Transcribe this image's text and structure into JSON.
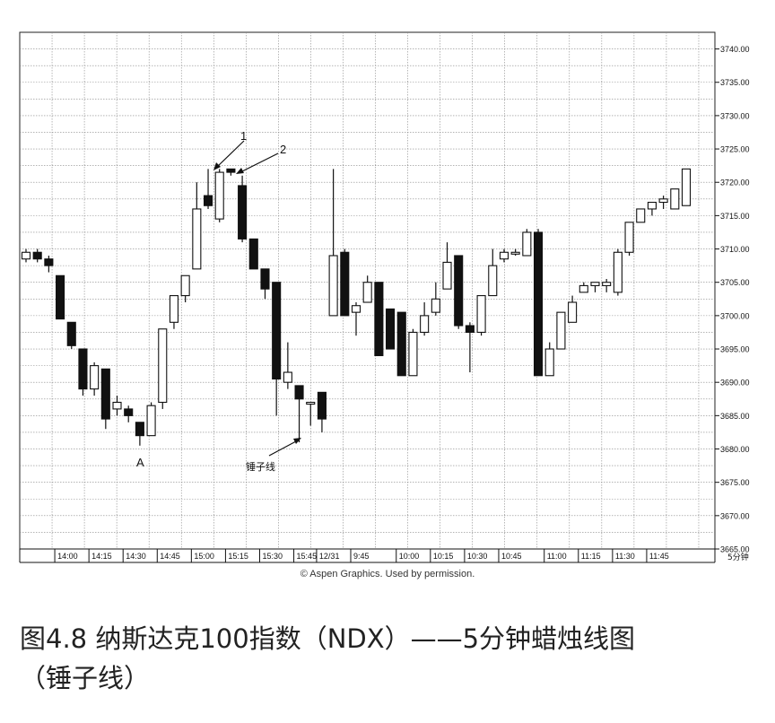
{
  "chart_data": {
    "type": "candlestick",
    "ylim": [
      3665,
      3742.5
    ],
    "grid": true,
    "y_ticks": [
      "3665.00",
      "3670.00",
      "3675.00",
      "3680.00",
      "3685.00",
      "3690.00",
      "3695.00",
      "3700.00",
      "3705.00",
      "3710.00",
      "3715.00",
      "3720.00",
      "3725.00",
      "3730.00",
      "3735.00",
      "3740.00"
    ],
    "x_labels": [
      "14:00",
      "14:15",
      "14:30",
      "14:45",
      "15:00",
      "15:15",
      "15:30",
      "15:45",
      "12/31",
      "9:45",
      "10:00",
      "10:15",
      "10:30",
      "10:45",
      "11:00",
      "11:15",
      "11:30",
      "11:45"
    ],
    "period_label": "5分钟",
    "annotations": {
      "label_1": "1",
      "label_2": "2",
      "label_A": "A",
      "hammer": "锤子线"
    },
    "candles": [
      {
        "o": 3708.5,
        "h": 3710,
        "l": 3708,
        "c": 3709.5
      },
      {
        "o": 3709.5,
        "h": 3710,
        "l": 3708,
        "c": 3708.5
      },
      {
        "o": 3708.5,
        "h": 3709,
        "l": 3706.5,
        "c": 3707.5
      },
      {
        "o": 3706,
        "h": 3706,
        "l": 3699.5,
        "c": 3699.5
      },
      {
        "o": 3699,
        "h": 3699,
        "l": 3695,
        "c": 3695.5
      },
      {
        "o": 3695,
        "h": 3695,
        "l": 3688,
        "c": 3689
      },
      {
        "o": 3689,
        "h": 3693,
        "l": 3688,
        "c": 3692.5
      },
      {
        "o": 3692,
        "h": 3692,
        "l": 3683,
        "c": 3684.5
      },
      {
        "o": 3686,
        "h": 3688,
        "l": 3685,
        "c": 3687
      },
      {
        "o": 3686,
        "h": 3686.5,
        "l": 3684,
        "c": 3685
      },
      {
        "o": 3684,
        "h": 3684,
        "l": 3680.5,
        "c": 3682
      },
      {
        "o": 3682,
        "h": 3687,
        "l": 3682,
        "c": 3686.5
      },
      {
        "o": 3687,
        "h": 3698,
        "l": 3686,
        "c": 3698
      },
      {
        "o": 3699,
        "h": 3703,
        "l": 3698,
        "c": 3703
      },
      {
        "o": 3703,
        "h": 3706,
        "l": 3702,
        "c": 3706
      },
      {
        "o": 3707,
        "h": 3720,
        "l": 3707,
        "c": 3716
      },
      {
        "o": 3718,
        "h": 3722,
        "l": 3716,
        "c": 3716.5
      },
      {
        "o": 3714.5,
        "h": 3722,
        "l": 3714,
        "c": 3721.5
      },
      {
        "o": 3722,
        "h": 3722,
        "l": 3721,
        "c": 3721.5
      },
      {
        "o": 3719.5,
        "h": 3721,
        "l": 3711,
        "c": 3711.5
      },
      {
        "o": 3711.5,
        "h": 3711.5,
        "l": 3707,
        "c": 3707
      },
      {
        "o": 3707,
        "h": 3707,
        "l": 3702.5,
        "c": 3704
      },
      {
        "o": 3705,
        "h": 3705,
        "l": 3685,
        "c": 3690.5
      },
      {
        "o": 3690,
        "h": 3696,
        "l": 3689,
        "c": 3691.5
      },
      {
        "o": 3689.5,
        "h": 3689.5,
        "l": 3681,
        "c": 3687.5
      },
      {
        "o": 3687,
        "h": 3687,
        "l": 3683.5,
        "c": 3687
      },
      {
        "o": 3688.5,
        "h": 3688.5,
        "l": 3682.5,
        "c": 3684.5
      },
      {
        "o": 3700,
        "h": 3722,
        "l": 3700,
        "c": 3709
      },
      {
        "o": 3709.5,
        "h": 3710,
        "l": 3700,
        "c": 3700
      },
      {
        "o": 3700.5,
        "h": 3702,
        "l": 3697,
        "c": 3701.5
      },
      {
        "o": 3702,
        "h": 3706,
        "l": 3702,
        "c": 3705
      },
      {
        "o": 3705,
        "h": 3705,
        "l": 3694,
        "c": 3694
      },
      {
        "o": 3701,
        "h": 3701,
        "l": 3695,
        "c": 3695
      },
      {
        "o": 3700.5,
        "h": 3700.5,
        "l": 3691,
        "c": 3691
      },
      {
        "o": 3691,
        "h": 3698,
        "l": 3691,
        "c": 3697.5
      },
      {
        "o": 3697.5,
        "h": 3702,
        "l": 3697,
        "c": 3700
      },
      {
        "o": 3700.5,
        "h": 3705,
        "l": 3700,
        "c": 3702.5
      },
      {
        "o": 3704,
        "h": 3711,
        "l": 3704,
        "c": 3708
      },
      {
        "o": 3709,
        "h": 3709,
        "l": 3698,
        "c": 3698.5
      },
      {
        "o": 3698.5,
        "h": 3699,
        "l": 3691.5,
        "c": 3697.5
      },
      {
        "o": 3697.5,
        "h": 3703,
        "l": 3697,
        "c": 3703
      },
      {
        "o": 3703,
        "h": 3710,
        "l": 3703,
        "c": 3707.5
      },
      {
        "o": 3708.5,
        "h": 3710,
        "l": 3708,
        "c": 3709.5
      },
      {
        "o": 3709.5,
        "h": 3710,
        "l": 3709,
        "c": 3709.5
      },
      {
        "o": 3709,
        "h": 3713,
        "l": 3709,
        "c": 3712.5
      },
      {
        "o": 3712.5,
        "h": 3713,
        "l": 3691,
        "c": 3691
      },
      {
        "o": 3691,
        "h": 3696,
        "l": 3691,
        "c": 3695
      },
      {
        "o": 3695,
        "h": 3700.5,
        "l": 3695,
        "c": 3700.5
      },
      {
        "o": 3699,
        "h": 3703,
        "l": 3699,
        "c": 3702
      },
      {
        "o": 3703.5,
        "h": 3705,
        "l": 3703.5,
        "c": 3704.5
      },
      {
        "o": 3704.5,
        "h": 3705,
        "l": 3703.5,
        "c": 3705
      },
      {
        "o": 3704.5,
        "h": 3705.5,
        "l": 3703.5,
        "c": 3705
      },
      {
        "o": 3703.5,
        "h": 3710,
        "l": 3703,
        "c": 3709.5
      },
      {
        "o": 3709.5,
        "h": 3714,
        "l": 3709,
        "c": 3714
      },
      {
        "o": 3714,
        "h": 3716,
        "l": 3714,
        "c": 3716
      },
      {
        "o": 3716,
        "h": 3717,
        "l": 3715,
        "c": 3717
      },
      {
        "o": 3717,
        "h": 3718,
        "l": 3716,
        "c": 3717.5
      },
      {
        "o": 3716,
        "h": 3719,
        "l": 3716,
        "c": 3719
      },
      {
        "o": 3716.5,
        "h": 3722,
        "l": 3716.5,
        "c": 3722
      }
    ]
  },
  "copyright": "© Aspen Graphics. Used by permission.",
  "caption": {
    "line1": "图4.8 纳斯达克100指数（NDX）——5分钟蜡烛线图",
    "line2": "（锤子线）"
  }
}
